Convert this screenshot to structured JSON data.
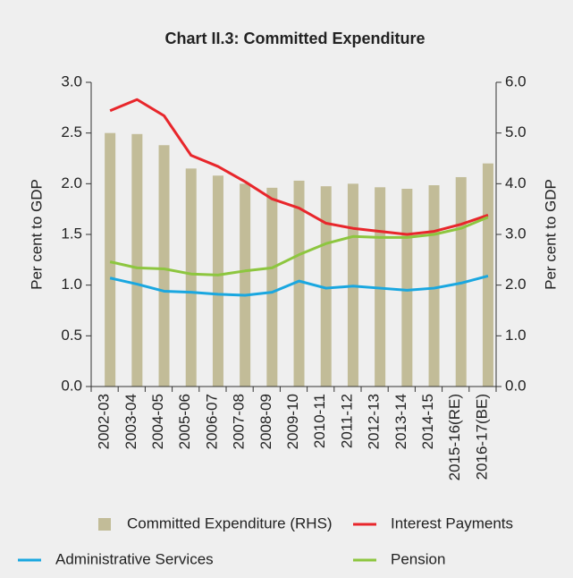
{
  "chart_data": {
    "type": "bar_line",
    "title": "Chart II.3: Committed Expenditure",
    "ylabel": "Per cent to GDP",
    "y2label": "Per cent to GDP",
    "categories": [
      "2002-03",
      "2003-04",
      "2004-05",
      "2005-06",
      "2006-07",
      "2007-08",
      "2008-09",
      "2009-10",
      "2010-11",
      "2011-12",
      "2012-13",
      "2013-14",
      "2014-15",
      "2015-16(RE)",
      "2016-17(BE)"
    ],
    "series": [
      {
        "name": "Committed Expenditure (RHS)",
        "color": "#c2bc98",
        "kind": "bar",
        "axis": "y2",
        "values": [
          5.0,
          4.98,
          4.76,
          4.3,
          4.16,
          4.0,
          3.92,
          4.06,
          3.95,
          4.0,
          3.93,
          3.9,
          3.97,
          4.13,
          4.4
        ]
      },
      {
        "name": "Interest Payments",
        "color": "#e8262b",
        "kind": "line",
        "values": [
          2.72,
          2.83,
          2.67,
          2.28,
          2.17,
          2.02,
          1.85,
          1.76,
          1.61,
          1.56,
          1.53,
          1.5,
          1.53,
          1.6,
          1.69
        ]
      },
      {
        "name": "Administrative Services",
        "color": "#1aa7e0",
        "kind": "line",
        "values": [
          1.07,
          1.01,
          0.94,
          0.93,
          0.91,
          0.9,
          0.93,
          1.04,
          0.97,
          0.99,
          0.97,
          0.95,
          0.97,
          1.02,
          1.09
        ]
      },
      {
        "name": "Pension",
        "color": "#8dc63f",
        "kind": "line",
        "values": [
          1.23,
          1.17,
          1.16,
          1.11,
          1.1,
          1.14,
          1.17,
          1.3,
          1.41,
          1.48,
          1.47,
          1.47,
          1.5,
          1.56,
          1.67
        ]
      }
    ],
    "ylim": [
      0,
      3
    ],
    "yticks": [
      {
        "value": 0,
        "label": "0.0"
      },
      0.5,
      {
        "value": 1,
        "label": "1.0"
      },
      1.5,
      {
        "value": 2,
        "label": "2.0"
      },
      2.5,
      {
        "value": 3,
        "label": "3.0"
      }
    ],
    "y2lim": [
      0,
      6
    ],
    "y2ticks": [
      {
        "value": 0,
        "label": "0.0"
      },
      {
        "value": 1,
        "label": "1.0"
      },
      {
        "value": 2,
        "label": "2.0"
      },
      {
        "value": 3,
        "label": "3.0"
      },
      {
        "value": 4,
        "label": "4.0"
      },
      {
        "value": 5,
        "label": "5.0"
      },
      {
        "value": 6,
        "label": "6.0"
      }
    ],
    "legend": "bottom"
  }
}
